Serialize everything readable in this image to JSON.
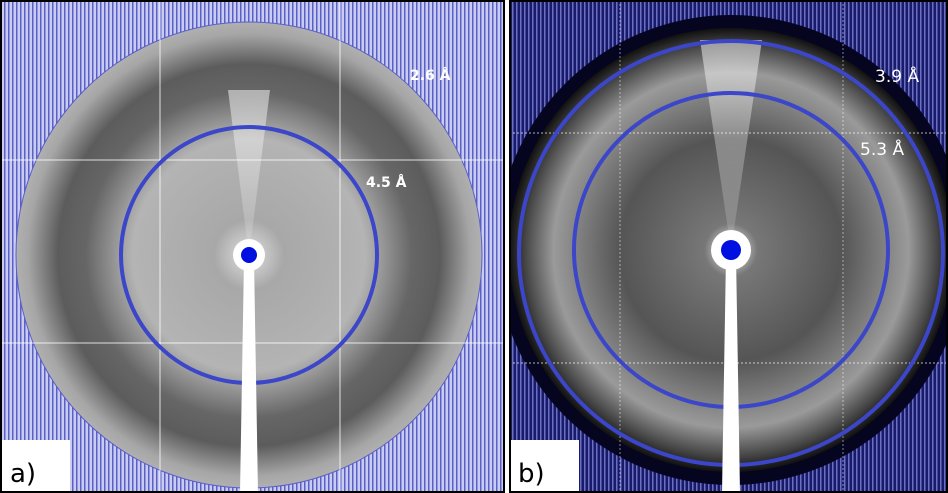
{
  "panels": [
    {
      "label": "a)",
      "rings": [
        {
          "label": "2.6 Å"
        },
        {
          "label": "4.5 Å"
        }
      ]
    },
    {
      "label": "b)",
      "rings": [
        {
          "label": "3.9 Å"
        },
        {
          "label": "5.3 Å"
        }
      ]
    }
  ]
}
